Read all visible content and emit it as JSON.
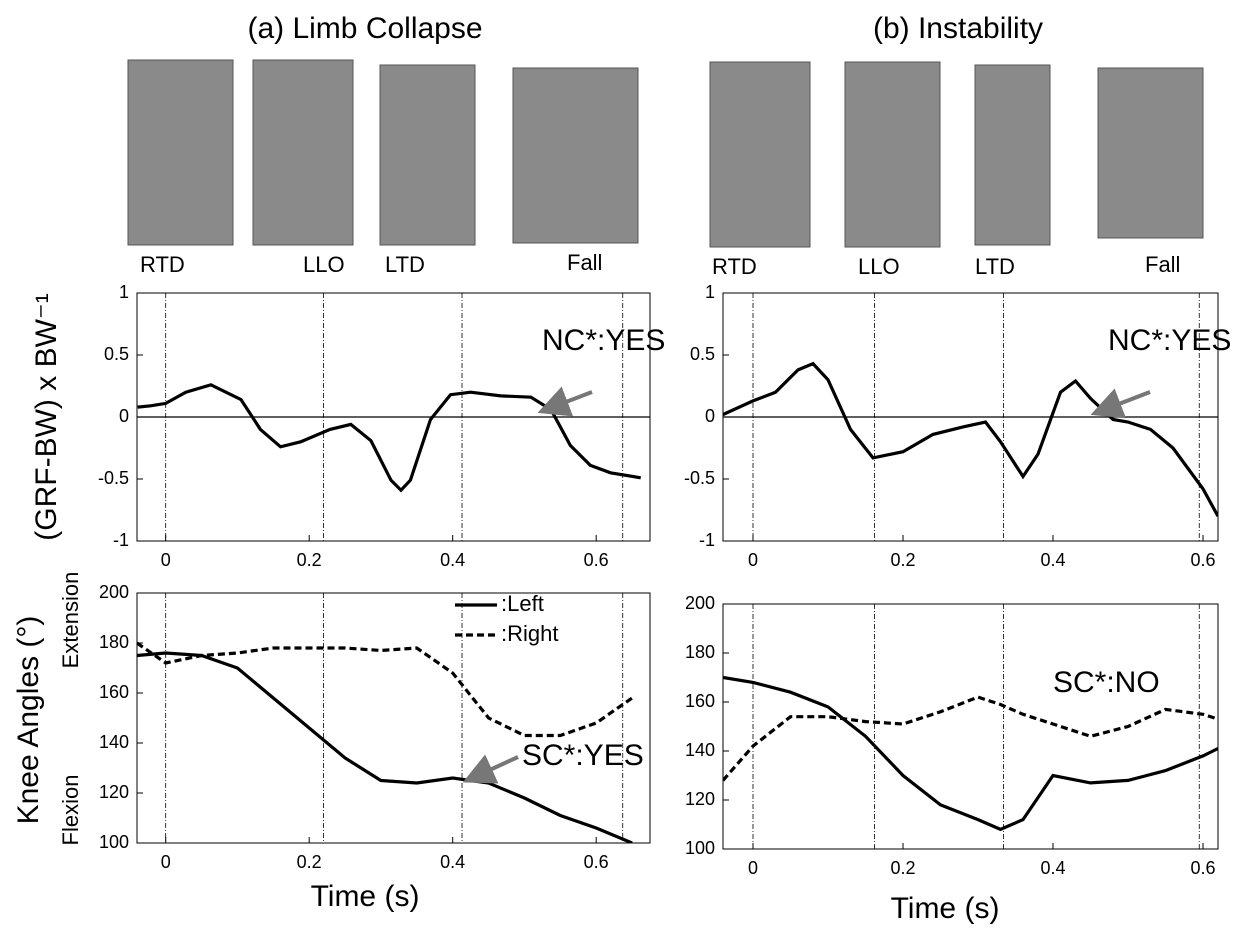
{
  "titles": [
    "(a) Limb Collapse",
    "(b) Instability"
  ],
  "photo_labels": [
    [
      "RTD",
      "LLO",
      "LTD",
      "Fall"
    ],
    [
      "RTD",
      "LLO",
      "LTD",
      "Fall"
    ]
  ],
  "y_labels": {
    "grf": "(GRF-BW) x BW⁻¹",
    "knee": "Knee Angles (°)",
    "extension": "Extension",
    "flexion": "Flexion"
  },
  "chart_data": [
    {
      "type": "line",
      "x": [
        -0.039,
        -0.021,
        0,
        0.028,
        0.063,
        0.105,
        0.132,
        0.16,
        0.188,
        0.229,
        0.258,
        0.286,
        0.314,
        0.328,
        0.341,
        0.369,
        0.397,
        0.425,
        0.467,
        0.509,
        0.537,
        0.564,
        0.592,
        0.62,
        0.662
      ],
      "series": [
        {
          "color": "#000000",
          "style": "solid",
          "values": [
            0.08,
            0.09,
            0.11,
            0.2,
            0.26,
            0.14,
            -0.1,
            -0.24,
            -0.2,
            -0.1,
            -0.06,
            -0.19,
            -0.51,
            -0.59,
            -0.51,
            -0.02,
            0.18,
            0.2,
            0.17,
            0.16,
            0.06,
            -0.23,
            -0.39,
            -0.45,
            -0.49
          ]
        }
      ],
      "xlim": [
        -0.04,
        0.675
      ],
      "ylim": [
        -1,
        1
      ],
      "xticks": [
        0,
        0.2,
        0.4,
        0.6
      ],
      "yticks": [
        -1,
        -0.5,
        0,
        0.5,
        1
      ],
      "event_lines": [
        0,
        0.22,
        0.413,
        0.637
      ],
      "reference_line": 0,
      "annotation": "NC*:YES"
    },
    {
      "type": "line",
      "x": [
        -0.04,
        0,
        0.05,
        0.1,
        0.15,
        0.2,
        0.25,
        0.3,
        0.35,
        0.4,
        0.45,
        0.5,
        0.55,
        0.6,
        0.65
      ],
      "series": [
        {
          "name": ":Left",
          "color": "#000000",
          "style": "solid",
          "values": [
            175,
            176,
            175,
            170,
            158,
            146,
            134,
            125,
            124,
            126,
            124,
            118,
            111,
            106,
            100
          ]
        },
        {
          "name": ":Right",
          "color": "#000000",
          "style": "dashed",
          "values": [
            180,
            172,
            175,
            176,
            178,
            178,
            178,
            177,
            178,
            168,
            150,
            143,
            143,
            148,
            158
          ]
        }
      ],
      "xlim": [
        -0.04,
        0.675
      ],
      "ylim": [
        100,
        200
      ],
      "xticks": [
        0,
        0.2,
        0.4,
        0.6
      ],
      "yticks": [
        100,
        120,
        140,
        160,
        180,
        200
      ],
      "event_lines": [
        0,
        0.22,
        0.413,
        0.637
      ],
      "legend": "upper right",
      "annotation": "SC*:YES",
      "x_label": "Time (s)"
    },
    {
      "type": "line",
      "x": [
        -0.04,
        0,
        0.03,
        0.06,
        0.08,
        0.1,
        0.13,
        0.16,
        0.2,
        0.24,
        0.28,
        0.31,
        0.33,
        0.36,
        0.38,
        0.41,
        0.43,
        0.45,
        0.48,
        0.5,
        0.53,
        0.56,
        0.6,
        0.62
      ],
      "series": [
        {
          "color": "#000000",
          "style": "solid",
          "values": [
            0.02,
            0.13,
            0.2,
            0.38,
            0.43,
            0.3,
            -0.1,
            -0.33,
            -0.28,
            -0.14,
            -0.08,
            -0.04,
            -0.2,
            -0.48,
            -0.3,
            0.2,
            0.29,
            0.15,
            -0.02,
            -0.04,
            -0.1,
            -0.25,
            -0.58,
            -0.8
          ]
        }
      ],
      "xlim": [
        -0.04,
        0.62
      ],
      "ylim": [
        -1,
        1
      ],
      "xticks": [
        0,
        0.2,
        0.4,
        0.6
      ],
      "yticks": [
        -1,
        -0.5,
        0,
        0.5,
        1
      ],
      "event_lines": [
        0,
        0.162,
        0.334,
        0.595
      ],
      "reference_line": 0,
      "annotation": "NC*:YES"
    },
    {
      "type": "line",
      "x": [
        -0.04,
        0,
        0.05,
        0.1,
        0.15,
        0.2,
        0.25,
        0.3,
        0.33,
        0.36,
        0.4,
        0.45,
        0.5,
        0.55,
        0.6,
        0.62
      ],
      "series": [
        {
          "color": "#000000",
          "style": "solid",
          "values": [
            170,
            168,
            164,
            158,
            146,
            130,
            118,
            112,
            108,
            112,
            130,
            127,
            128,
            132,
            138,
            141
          ]
        },
        {
          "color": "#000000",
          "style": "dashed",
          "values": [
            128,
            142,
            154,
            154,
            152,
            151,
            156,
            162,
            159,
            155,
            151,
            146,
            150,
            157,
            155,
            153
          ]
        }
      ],
      "xlim": [
        -0.04,
        0.62
      ],
      "ylim": [
        100,
        200
      ],
      "xticks": [
        0,
        0.2,
        0.4,
        0.6
      ],
      "yticks": [
        100,
        120,
        140,
        160,
        180,
        200
      ],
      "event_lines": [
        0,
        0.162,
        0.334,
        0.595
      ],
      "annotation": "SC*:NO",
      "x_label": "Time (s)"
    }
  ]
}
